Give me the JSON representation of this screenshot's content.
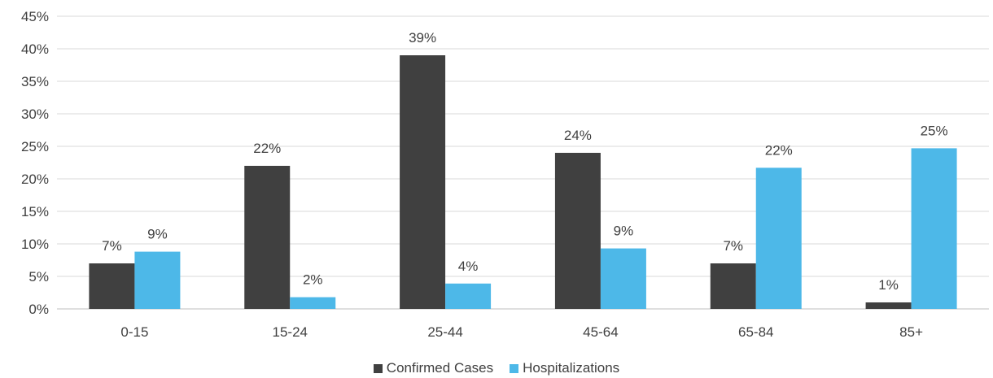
{
  "chart_data": {
    "type": "bar",
    "categories": [
      "0-15",
      "15-24",
      "25-44",
      "45-64",
      "65-84",
      "85+"
    ],
    "series": [
      {
        "name": "Confirmed Cases",
        "color": "#404040",
        "values": [
          7,
          22,
          39,
          24,
          7,
          1
        ],
        "labels": [
          "7%",
          "22%",
          "39%",
          "24%",
          "7%",
          "1%"
        ]
      },
      {
        "name": "Hospitalizations",
        "color": "#4db8e8",
        "values": [
          8.8,
          1.8,
          3.9,
          9.3,
          21.7,
          24.7
        ],
        "labels": [
          "9%",
          "2%",
          "4%",
          "9%",
          "22%",
          "25%"
        ]
      }
    ],
    "ylim": [
      0,
      45
    ],
    "yticks": [
      0,
      5,
      10,
      15,
      20,
      25,
      30,
      35,
      40,
      45
    ],
    "ytick_labels": [
      "0%",
      "5%",
      "10%",
      "15%",
      "20%",
      "25%",
      "30%",
      "35%",
      "40%",
      "45%"
    ],
    "grid": true,
    "legend_position": "bottom",
    "gridline_color": "#d9d9d9"
  }
}
